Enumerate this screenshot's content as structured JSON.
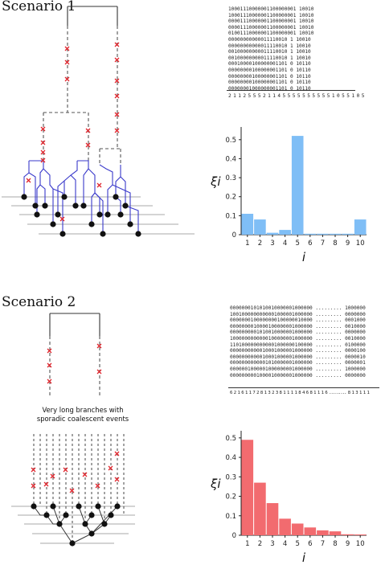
{
  "scenario1": {
    "title": "Scenario 1",
    "matrix_rows": [
      "10001110000001100000001 10010",
      "10001110000001100000001 10010",
      "00001110000001100000001 10010",
      "00001110000001100000001 10010",
      "01001110000001100000001 10010",
      "00000000000011110010 1 10010",
      "00000000000011110010 1 10010",
      "00100000000011110010 1 10010",
      "00100000000011110010 1 10010",
      "00010000100000001101 0 10110",
      "00000000100000001101 0 10110",
      "00000000100000001101 0 10110",
      "00000000100000001101 0 10110",
      "00000001000000001101 0 10110"
    ],
    "column_sums": "2 1 1 2 5 5 5 2 1 1 4 5 5 5 5 5 5 5 5 5 5 1 0 5 5 1 0 5",
    "chart_data": {
      "type": "bar",
      "categories": [
        "1",
        "2",
        "3",
        "4",
        "5",
        "6",
        "7",
        "8",
        "9",
        "10"
      ],
      "values": [
        0.11,
        0.08,
        0.01,
        0.025,
        0.52,
        0.005,
        0.005,
        0.005,
        0.005,
        0.08
      ],
      "ylim": [
        0,
        0.55
      ],
      "yticks": [
        "0",
        "0.1",
        "0.2",
        "0.3",
        "0.4",
        "0.5"
      ],
      "xlabel": "i",
      "ylabel": "ξi",
      "bar_color": "#7fbef6"
    }
  },
  "scenario2": {
    "title": "Scenario 2",
    "note_line1": "Very long branches with",
    "note_line2": "sporadic coalescent events",
    "matrix_rows": [
      "0000000101010010000001000000 ......... 1000000",
      "1001000000000001000001000000 ......... 0000000",
      "0000000100000000100000010000 ......... 0001000",
      "0000000010000100000001000000 ......... 0010000",
      "0000000001010010000001000000 ......... 0000000",
      "1000000000000100000001000000 ......... 0010000",
      "1101000000000001000000100000 ......... 0100000",
      "0000000000010001000001000000 ......... 0000100",
      "0000000000010001000001000000 ......... 0000010",
      "0000000000001010000001000000 ......... 0000001",
      "0000001000001000000001000000 ......... 1000000",
      "0000000001000010000001000000 ......... 0000000"
    ],
    "column_sums": "6 2 1 6 1 1 7 2 8 1 3 2 3 8 1 1 1 1 8 4 6 8 1 1 1 6 ......... 8 1 3 1 1 1",
    "chart_data": {
      "type": "bar",
      "categories": [
        "1",
        "2",
        "3",
        "4",
        "5",
        "6",
        "7",
        "8",
        "9",
        "10"
      ],
      "values": [
        0.49,
        0.27,
        0.165,
        0.085,
        0.06,
        0.04,
        0.025,
        0.02,
        0.005,
        0.004
      ],
      "ylim": [
        0,
        0.52
      ],
      "yticks": [
        "0",
        "0.1",
        "0.2",
        "0.3",
        "0.4",
        "0.5"
      ],
      "xlabel": "i",
      "ylabel": "ξi",
      "bar_color": "#f26b6f"
    }
  }
}
